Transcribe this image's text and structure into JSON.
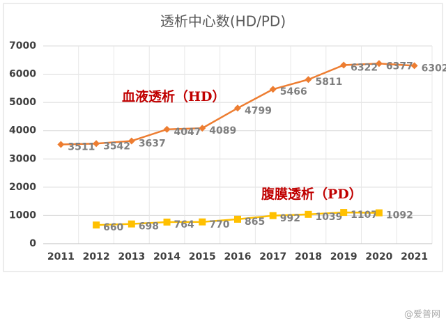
{
  "chart_data": {
    "type": "line",
    "title": "透析中心数(HD/PD)",
    "categories": [
      "2011",
      "2012",
      "2013",
      "2014",
      "2015",
      "2016",
      "2017",
      "2018",
      "2019",
      "2020",
      "2021"
    ],
    "series": [
      {
        "name": "血液透析（HD）",
        "color": "#ed7d31",
        "marker": "diamond",
        "values": [
          3511,
          3542,
          3637,
          4047,
          4089,
          4799,
          5466,
          5811,
          6322,
          6377,
          6302
        ]
      },
      {
        "name": "腹膜透析（PD）",
        "color": "#ffc000",
        "marker": "square",
        "values": [
          null,
          660,
          698,
          764,
          770,
          865,
          992,
          1039,
          1107,
          1092,
          null
        ]
      }
    ],
    "ylim": [
      0,
      7000
    ],
    "yticks": [
      0,
      1000,
      2000,
      3000,
      4000,
      5000,
      6000,
      7000
    ],
    "grid": true,
    "label_color": "#c00000",
    "watermark": "@爱普网"
  }
}
